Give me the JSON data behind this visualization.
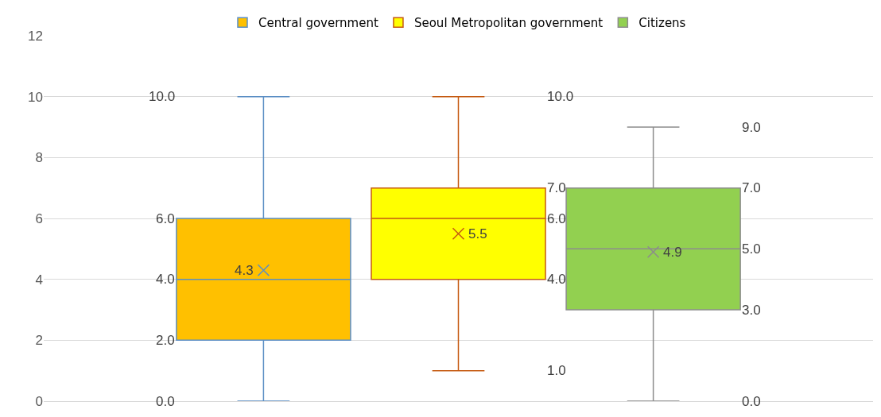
{
  "chart_data": {
    "type": "box",
    "categories": [
      null
    ],
    "series": [
      {
        "name": "Central government",
        "color": "#ffc000",
        "boxes": [
          {
            "low": 0,
            "q1": 2,
            "median": 4,
            "q3": 6,
            "high": 10,
            "mean": 4.3
          }
        ],
        "value_labels": [
          [
            "0.0",
            "2.0",
            "4.0",
            "6.0",
            "10.0",
            "4.3"
          ]
        ]
      },
      {
        "name": "Seoul Metropolitan government",
        "color": "#ffff00",
        "boxes": [
          {
            "low": 1,
            "q1": 4,
            "median": 6,
            "q3": 7,
            "high": 10,
            "mean": 5.5
          }
        ],
        "value_labels": [
          [
            "1.0",
            "4.0",
            "6.0",
            "7.0",
            "10.0",
            "5.5"
          ]
        ]
      },
      {
        "name": "Citizens",
        "color": "#92d050",
        "boxes": [
          {
            "low": 0,
            "q1": 3,
            "median": 5,
            "q3": 7,
            "high": 9,
            "mean": 4.9
          }
        ],
        "value_labels": [
          [
            "0.0",
            "3.0",
            "5.0",
            "7.0",
            "9.0",
            "4.9"
          ]
        ]
      }
    ],
    "ylim": [
      0,
      12
    ],
    "yticks": [
      0,
      2,
      4,
      6,
      8,
      10,
      12
    ],
    "grid": "y",
    "legend": "top",
    "marker": "cross"
  }
}
